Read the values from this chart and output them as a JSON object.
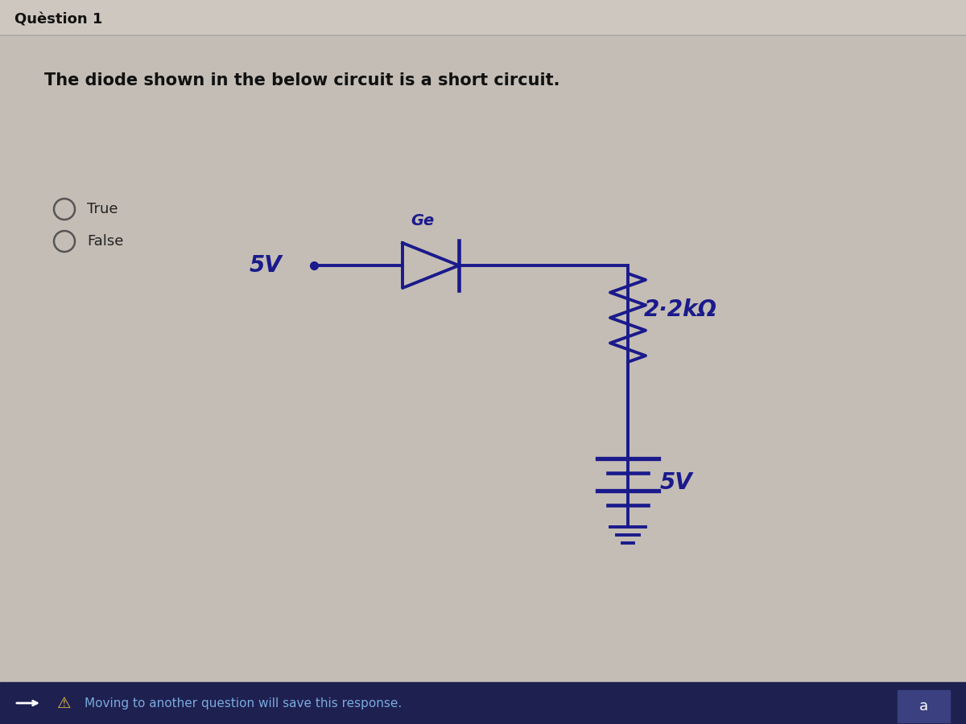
{
  "bg_color": "#c4bdb5",
  "title_text": "Quèstion 1",
  "question_text": "The diode shown in the below circuit is a short circuit.",
  "true_label": "True",
  "false_label": "False",
  "footer_text": "Moving to another question will save this response.",
  "circuit_color": "#1a1a8c",
  "sv_label": "5V",
  "ge_label": "Ge",
  "resistor_label": "2·2kΩ",
  "sv2_label": "5V",
  "bottom_bar_color": "#1e2050",
  "title_fontsize": 13,
  "question_fontsize": 15,
  "radio_color": "#555555",
  "radio_text_color": "#222222"
}
